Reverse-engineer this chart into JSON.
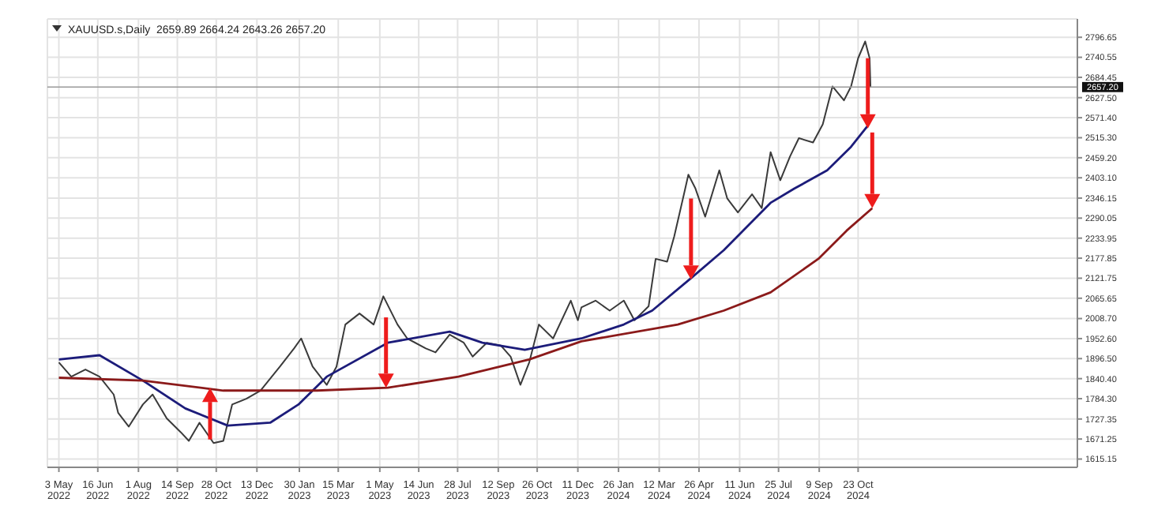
{
  "chart_data": {
    "type": "line",
    "title": "XAUUSD.s,Daily  2659.89 2664.24 2643.26 2657.20",
    "xlim": [
      "2022-04-20",
      "2025-06-28"
    ],
    "ylim": [
      1592,
      2848
    ],
    "xticks": [
      {
        "value": "2022-05-03",
        "label": "3 May 2022"
      },
      {
        "value": "2022-06-16",
        "label": "16 Jun 2022"
      },
      {
        "value": "2022-08-01",
        "label": "1 Aug 2022"
      },
      {
        "value": "2022-09-14",
        "label": "14 Sep 2022"
      },
      {
        "value": "2022-10-28",
        "label": "28 Oct 2022"
      },
      {
        "value": "2022-12-13",
        "label": "13 Dec 2022"
      },
      {
        "value": "2023-01-30",
        "label": "30 Jan 2023"
      },
      {
        "value": "2023-03-15",
        "label": "15 Mar 2023"
      },
      {
        "value": "2023-05-01",
        "label": "1 May 2023"
      },
      {
        "value": "2023-06-14",
        "label": "14 Jun 2023"
      },
      {
        "value": "2023-07-28",
        "label": "28 Jul 2023"
      },
      {
        "value": "2023-09-12",
        "label": "12 Sep 2023"
      },
      {
        "value": "2023-10-26",
        "label": "26 Oct 2023"
      },
      {
        "value": "2023-12-11",
        "label": "11 Dec 2023"
      },
      {
        "value": "2024-01-26",
        "label": "26 Jan 2024"
      },
      {
        "value": "2024-03-12",
        "label": "12 Mar 2024"
      },
      {
        "value": "2024-04-26",
        "label": "26 Apr 2024"
      },
      {
        "value": "2024-06-11",
        "label": "11 Jun 2024"
      },
      {
        "value": "2024-07-25",
        "label": "25 Jul 2024"
      },
      {
        "value": "2024-09-09",
        "label": "9 Sep 2024"
      },
      {
        "value": "2024-10-23",
        "label": "23 Oct 2024"
      }
    ],
    "yticks": [
      1615.15,
      1671.25,
      1727.35,
      {
        "value": 1784.3,
        "label": "1784.30"
      },
      {
        "value": 1840.4,
        "label": "1840.40"
      },
      {
        "value": 1896.5,
        "label": "1896.50"
      },
      {
        "value": 1952.6,
        "label": "1952.60"
      },
      {
        "value": 2008.7,
        "label": "2008.70"
      },
      2065.65,
      2121.75,
      2177.85,
      2233.95,
      2290.05,
      2346.15,
      {
        "value": 2403.1,
        "label": "2403.10"
      },
      {
        "value": 2459.2,
        "label": "2459.20"
      },
      {
        "value": 2515.3,
        "label": "2515.30"
      },
      {
        "value": 2571.4,
        "label": "2571.40"
      },
      {
        "value": 2627.5,
        "label": "2627.50"
      },
      2684.45,
      2740.55,
      2796.65
    ],
    "grid": true,
    "marker": "none",
    "line_style": "solid",
    "ref_lines": [
      {
        "axis": "y",
        "value": 2657.2,
        "label": "2657.20",
        "color": "#9a9a9a"
      }
    ],
    "series": [
      {
        "color": "#3a3a3a",
        "x": [
          "2022-05-03",
          "2022-05-17",
          "2022-06-02",
          "2022-06-18",
          "2022-07-04",
          "2022-07-09",
          "2022-07-21",
          "2022-08-06",
          "2022-08-17",
          "2022-09-02",
          "2022-09-18",
          "2022-09-27",
          "2022-10-09",
          "2022-10-25",
          "2022-11-05",
          "2022-11-15",
          "2022-12-01",
          "2022-12-17",
          "2023-01-08",
          "2023-01-24",
          "2023-02-01",
          "2023-02-14",
          "2023-03-02",
          "2023-03-13",
          "2023-03-23",
          "2023-04-08",
          "2023-04-24",
          "2023-05-05",
          "2023-05-21",
          "2023-06-01",
          "2023-06-22",
          "2023-07-03",
          "2023-07-19",
          "2023-08-04",
          "2023-08-14",
          "2023-08-30",
          "2023-09-15",
          "2023-09-26",
          "2023-10-07",
          "2023-10-17",
          "2023-10-28",
          "2023-11-13",
          "2023-12-03",
          "2023-12-11",
          "2023-12-15",
          "2023-12-31",
          "2024-01-16",
          "2024-02-01",
          "2024-02-13",
          "2024-02-29",
          "2024-03-08",
          "2024-03-21",
          "2024-03-29",
          "2024-04-09",
          "2024-04-14",
          "2024-04-22",
          "2024-05-03",
          "2024-05-19",
          "2024-05-28",
          "2024-06-09",
          "2024-06-25",
          "2024-07-06",
          "2024-07-16",
          "2024-07-27",
          "2024-08-07",
          "2024-08-17",
          "2024-09-02",
          "2024-09-13",
          "2024-09-24",
          "2024-10-07",
          "2024-10-15",
          "2024-10-23",
          "2024-10-31",
          "2024-11-05",
          "2024-11-06"
        ],
        "values": [
          1886,
          1846,
          1866,
          1846,
          1796,
          1745,
          1706,
          1768,
          1796,
          1729,
          1690,
          1666,
          1717,
          1660,
          1666,
          1768,
          1784,
          1807,
          1874,
          1925,
          1953,
          1874,
          1823,
          1874,
          1992,
          2023,
          1992,
          2071,
          1992,
          1953,
          1925,
          1914,
          1964,
          1941,
          1902,
          1941,
          1933,
          1902,
          1823,
          1886,
          1992,
          1953,
          2059,
          2004,
          2040,
          2059,
          2031,
          2059,
          2004,
          2043,
          2176,
          2168,
          2239,
          2357,
          2412,
          2373,
          2294,
          2424,
          2345,
          2306,
          2357,
          2318,
          2475,
          2396,
          2463,
          2514,
          2502,
          2553,
          2659,
          2620,
          2659,
          2738,
          2785,
          2738,
          2657
        ]
      },
      {
        "color": "#1c1c7a",
        "x": [
          "2022-05-03",
          "2022-06-18",
          "2022-08-06",
          "2022-09-23",
          "2022-11-10",
          "2022-12-28",
          "2023-01-29",
          "2023-03-02",
          "2023-05-10",
          "2023-07-19",
          "2023-08-25",
          "2023-10-12",
          "2023-12-15",
          "2024-02-01",
          "2024-03-04",
          "2024-04-17",
          "2024-05-24",
          "2024-07-16",
          "2024-08-12",
          "2024-09-18",
          "2024-10-15",
          "2024-11-03"
        ],
        "values": [
          1894,
          1906,
          1835,
          1757,
          1709,
          1717,
          1768,
          1846,
          1941,
          1972,
          1941,
          1921,
          1953,
          1992,
          2031,
          2122,
          2200,
          2333,
          2373,
          2424,
          2490,
          2549
        ]
      },
      {
        "color": "#8b1a1a",
        "x": [
          "2022-05-03",
          "2022-08-06",
          "2022-11-05",
          "2023-02-19",
          "2023-05-10",
          "2023-07-29",
          "2023-10-17",
          "2023-12-15",
          "2024-04-02",
          "2024-05-24",
          "2024-07-16",
          "2024-09-08",
          "2024-10-10",
          "2024-11-08"
        ],
        "values": [
          1843,
          1835,
          1807,
          1807,
          1815,
          1846,
          1894,
          1945,
          1992,
          2031,
          2082,
          2176,
          2255,
          2318
        ]
      }
    ]
  }
}
